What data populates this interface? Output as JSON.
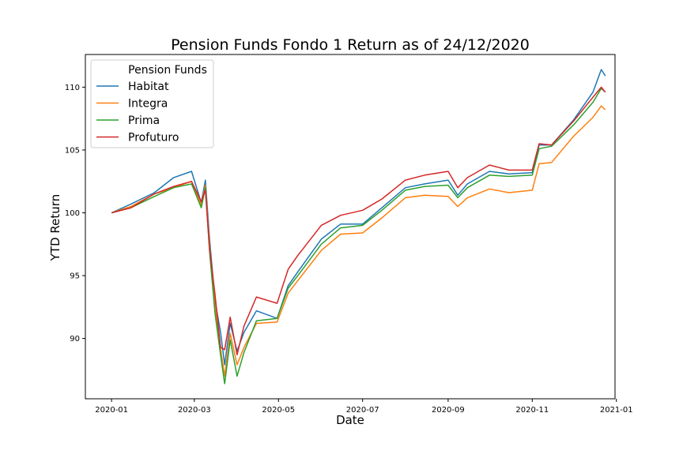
{
  "chart_data": {
    "type": "line",
    "title": "Pension Funds Fondo 1 Return as of 24/12/2020",
    "xlabel": "Date",
    "ylabel": "YTD Return",
    "x_ticks": [
      "2020-01",
      "2020-03",
      "2020-05",
      "2020-07",
      "2020-09",
      "2020-11",
      "2021-01"
    ],
    "y_ticks": [
      "90",
      "95",
      "100",
      "105",
      "110"
    ],
    "xlim": [
      "2019-12-13",
      "2020-12-31"
    ],
    "ylim": [
      85.2,
      112.6
    ],
    "grid": false,
    "legend": {
      "title": "Pension Funds",
      "position": "top-left"
    },
    "x": [
      "2020-01-01",
      "2020-01-15",
      "2020-02-01",
      "2020-02-15",
      "2020-02-28",
      "2020-03-06",
      "2020-03-09",
      "2020-03-12",
      "2020-03-16",
      "2020-03-20",
      "2020-03-23",
      "2020-03-27",
      "2020-04-01",
      "2020-04-06",
      "2020-04-15",
      "2020-04-30",
      "2020-05-08",
      "2020-05-15",
      "2020-06-01",
      "2020-06-15",
      "2020-07-01",
      "2020-07-15",
      "2020-08-01",
      "2020-08-15",
      "2020-09-01",
      "2020-09-08",
      "2020-09-15",
      "2020-10-01",
      "2020-10-15",
      "2020-11-01",
      "2020-11-06",
      "2020-11-15",
      "2020-12-01",
      "2020-12-15",
      "2020-12-21",
      "2020-12-24"
    ],
    "series": [
      {
        "name": "Habitat",
        "color": "#1f77b4",
        "values": [
          100.0,
          100.7,
          101.6,
          102.8,
          103.3,
          100.8,
          102.6,
          98.0,
          93.0,
          90.5,
          87.9,
          91.2,
          89.0,
          90.5,
          92.2,
          91.6,
          94.2,
          95.3,
          97.9,
          99.1,
          99.1,
          100.4,
          102.0,
          102.3,
          102.6,
          101.4,
          102.3,
          103.3,
          103.1,
          103.2,
          105.4,
          105.4,
          107.4,
          109.6,
          111.4,
          110.9
        ]
      },
      {
        "name": "Integra",
        "color": "#ff7f0e",
        "values": [
          100.0,
          100.5,
          101.5,
          102.0,
          102.5,
          100.6,
          102.2,
          97.5,
          92.5,
          89.2,
          87.0,
          90.4,
          87.9,
          89.3,
          91.2,
          91.3,
          93.6,
          94.6,
          97.0,
          98.3,
          98.4,
          99.6,
          101.2,
          101.4,
          101.3,
          100.5,
          101.2,
          101.9,
          101.6,
          101.8,
          103.9,
          104.0,
          106.1,
          107.6,
          108.5,
          108.2
        ]
      },
      {
        "name": "Prima",
        "color": "#2ca02c",
        "values": [
          100.0,
          100.4,
          101.3,
          102.0,
          102.3,
          100.4,
          102.0,
          97.0,
          92.0,
          88.7,
          86.4,
          89.9,
          87.0,
          88.9,
          91.4,
          91.6,
          94.0,
          95.0,
          97.5,
          98.8,
          99.0,
          100.2,
          101.8,
          102.1,
          102.2,
          101.2,
          102.0,
          103.0,
          102.9,
          103.0,
          105.1,
          105.3,
          107.0,
          108.8,
          109.9,
          109.6
        ]
      },
      {
        "name": "Profuturo",
        "color": "#d62728",
        "values": [
          100.0,
          100.4,
          101.5,
          102.1,
          102.5,
          100.9,
          101.8,
          97.2,
          93.5,
          89.3,
          89.1,
          91.7,
          88.7,
          91.0,
          93.3,
          92.8,
          95.5,
          96.6,
          99.0,
          99.8,
          100.2,
          101.1,
          102.6,
          103.0,
          103.3,
          102.0,
          102.8,
          103.8,
          103.4,
          103.4,
          105.5,
          105.4,
          107.3,
          109.2,
          110.0,
          109.6
        ]
      }
    ]
  }
}
